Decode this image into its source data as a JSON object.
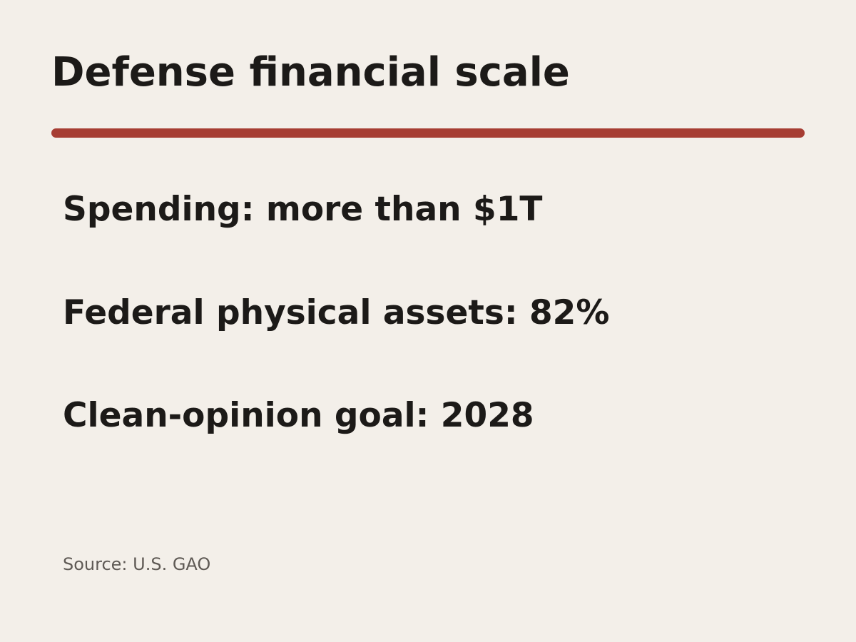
{
  "header": {
    "title": "Defense financial scale"
  },
  "items": [
    "Spending: more than $1T",
    "Federal physical assets: 82%",
    "Clean-opinion goal: 2028"
  ],
  "source": "Source: U.S. GAO"
}
